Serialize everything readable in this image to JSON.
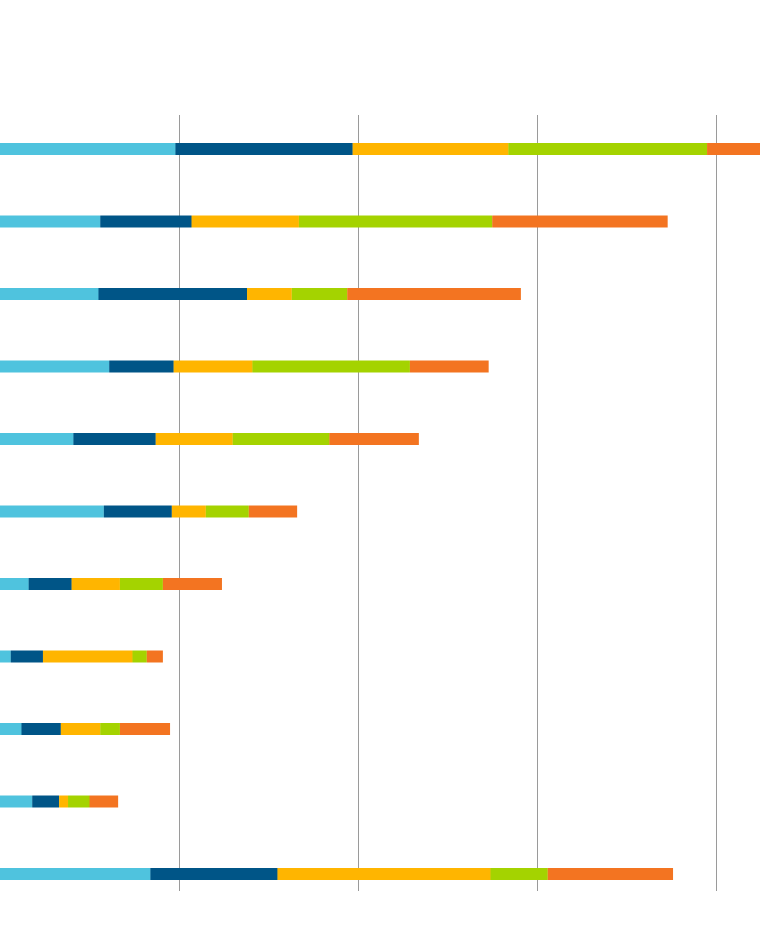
{
  "chart_data": {
    "type": "bar",
    "orientation": "horizontal",
    "stacked": true,
    "title": "",
    "xlabel": "",
    "ylabel": "",
    "xlim": [
      0,
      4.25
    ],
    "grid": true,
    "legend": "none",
    "categories": [
      "",
      "",
      "",
      "",
      "",
      "",
      "",
      "",
      "",
      "",
      ""
    ],
    "series": [
      {
        "color": "#4FC3DE",
        "values": [
          0.98,
          0.56,
          0.55,
          0.61,
          0.41,
          0.58,
          0.16,
          0.06,
          0.12,
          0.18,
          0.84
        ]
      },
      {
        "color": "#005587",
        "values": [
          0.99,
          0.51,
          0.83,
          0.36,
          0.46,
          0.38,
          0.24,
          0.18,
          0.22,
          0.15,
          0.71
        ]
      },
      {
        "color": "#FFB500",
        "values": [
          0.87,
          0.6,
          0.25,
          0.44,
          0.43,
          0.19,
          0.27,
          0.5,
          0.22,
          0.05,
          1.19
        ]
      },
      {
        "color": "#A4D300",
        "values": [
          1.11,
          1.08,
          0.31,
          0.88,
          0.54,
          0.24,
          0.24,
          0.08,
          0.11,
          0.12,
          0.32
        ]
      },
      {
        "color": "#F37421",
        "values": [
          0.3,
          0.98,
          0.97,
          0.44,
          0.5,
          0.27,
          0.33,
          0.09,
          0.28,
          0.16,
          0.7
        ]
      }
    ]
  }
}
